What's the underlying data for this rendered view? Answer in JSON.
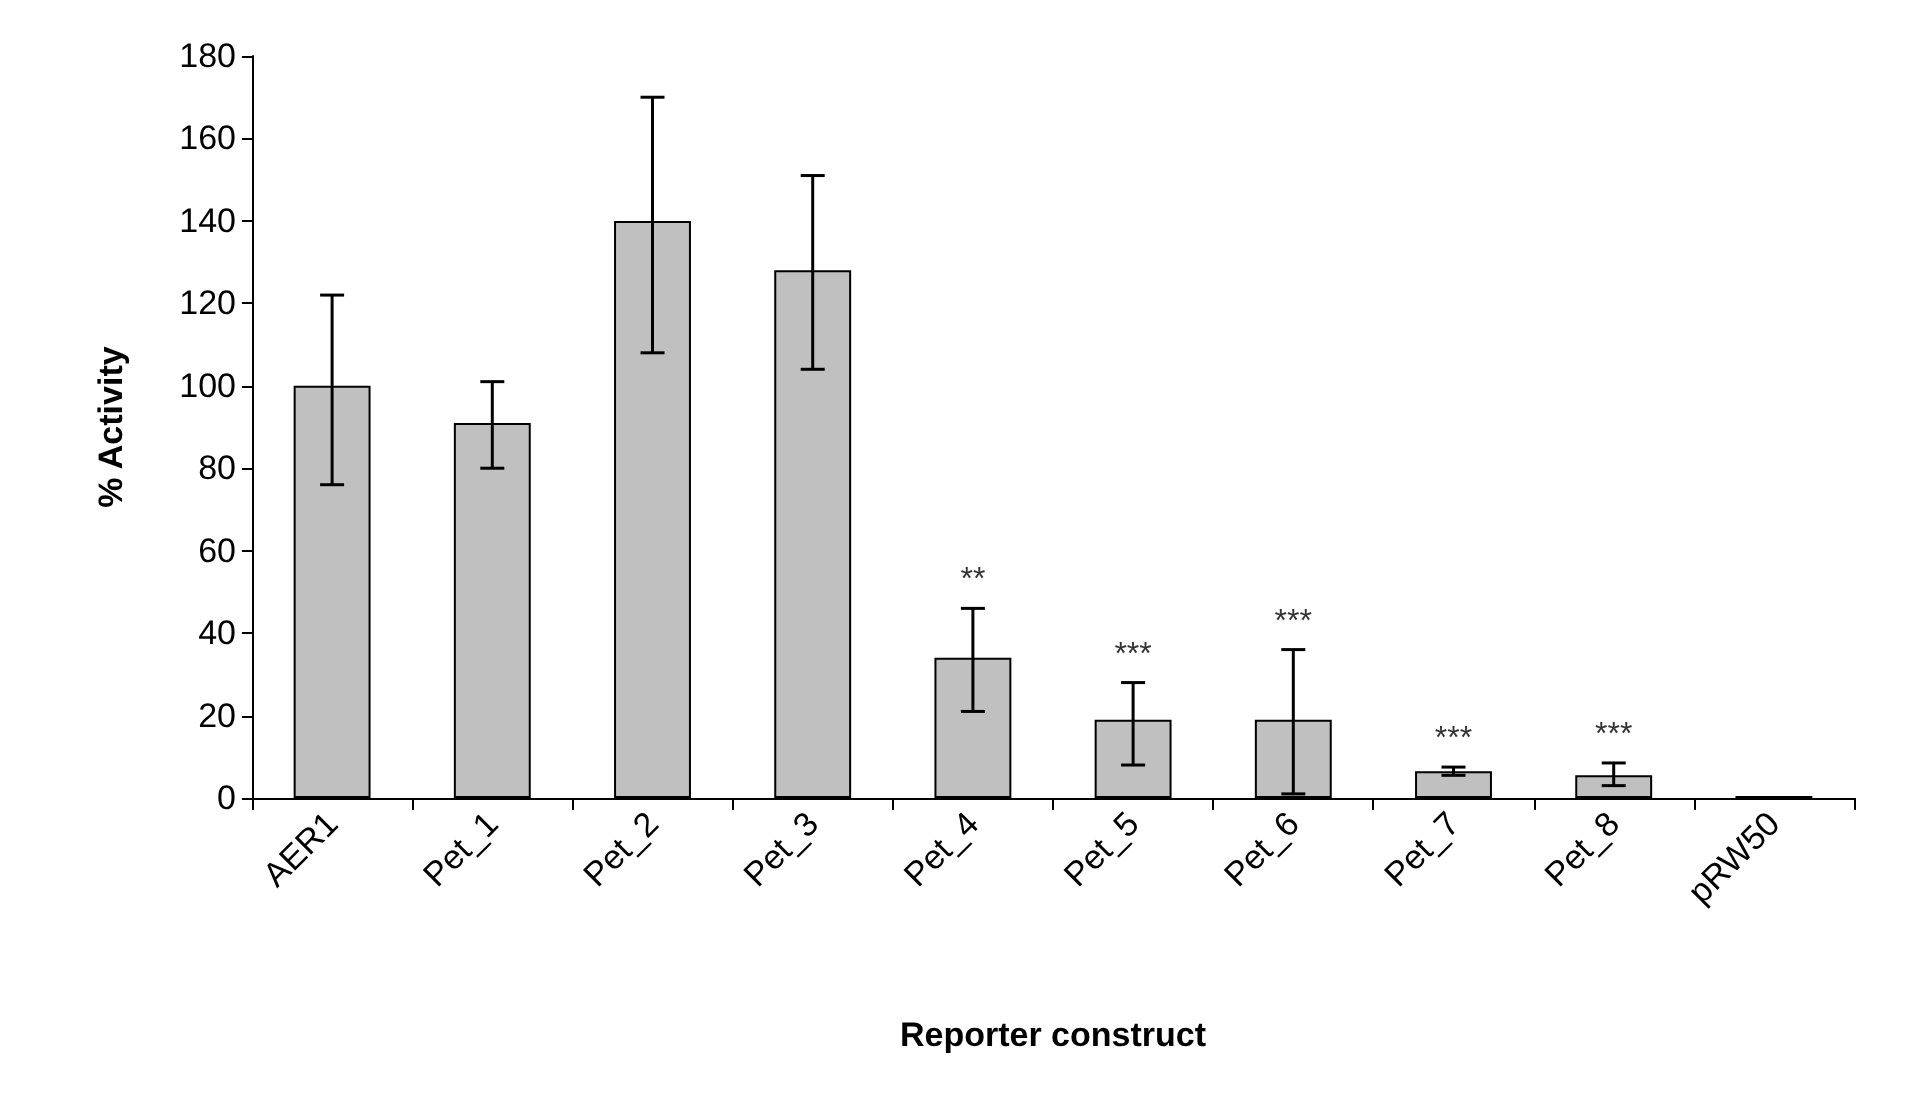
{
  "chart_data": {
    "type": "bar",
    "xlabel": "Reporter construct",
    "ylabel": "% Activity",
    "categories": [
      "AER1",
      "Pet_1",
      "Pet_2",
      "Pet_3",
      "Pet_4",
      "Pet_5",
      "Pet_6",
      "Pet_7",
      "Pet_8",
      "pRW50"
    ],
    "values": [
      100,
      91,
      140,
      128,
      34,
      19,
      19,
      6.5,
      5.5,
      0.5
    ],
    "errors": [
      [
        76,
        122
      ],
      [
        80,
        101
      ],
      [
        108,
        170
      ],
      [
        104,
        151
      ],
      [
        21,
        46
      ],
      [
        8,
        28
      ],
      [
        1,
        36
      ],
      [
        5.5,
        7.5
      ],
      [
        3,
        8.5
      ],
      null
    ],
    "color": "#c0c0c0",
    "ylim": [
      0,
      180
    ],
    "yticks": [
      0,
      20,
      40,
      60,
      80,
      100,
      120,
      140,
      160,
      180
    ],
    "grid": false,
    "annotations": [
      {
        "text": "**",
        "x": "Pet_4",
        "y": 34
      },
      {
        "text": "***",
        "x": "Pet_5",
        "y": 19
      },
      {
        "text": "***",
        "x": "Pet_6",
        "y": 19
      },
      {
        "text": "***",
        "x": "Pet_7",
        "y": 6.5
      },
      {
        "text": "***",
        "x": "Pet_8",
        "y": 5.5
      }
    ]
  }
}
